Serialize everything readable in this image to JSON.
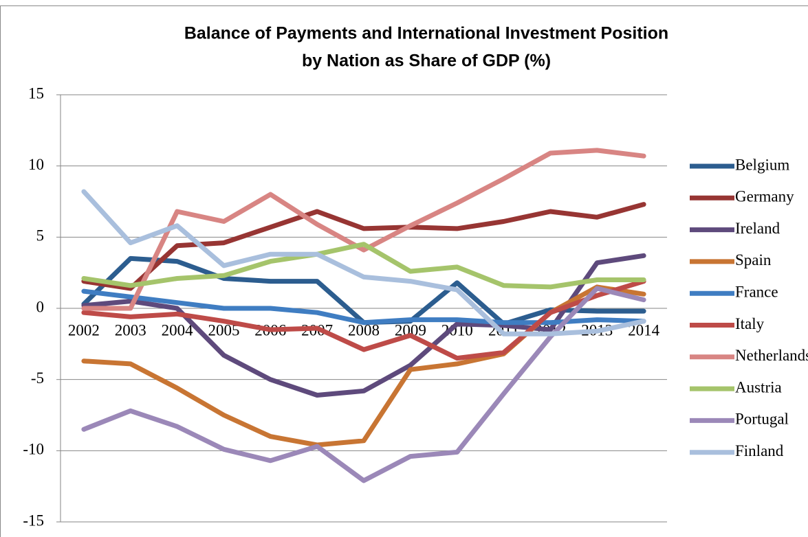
{
  "chart_data": {
    "type": "line",
    "title": [
      "Balance of Payments and International Investment Position",
      "by Nation as Share of GDP (%)"
    ],
    "categories": [
      "2002",
      "2003",
      "2004",
      "2005",
      "2006",
      "2007",
      "2008",
      "2009",
      "2010",
      "2011",
      "2012",
      "2013",
      "2014"
    ],
    "series": [
      {
        "name": "Belgium",
        "color": "#2C5D8F",
        "values": [
          0.3,
          3.5,
          3.3,
          2.1,
          1.9,
          1.9,
          -1.0,
          -0.9,
          1.8,
          -1.1,
          -0.1,
          -0.2,
          -0.2
        ]
      },
      {
        "name": "Germany",
        "color": "#973533",
        "values": [
          1.9,
          1.4,
          4.4,
          4.6,
          5.7,
          6.8,
          5.6,
          5.7,
          5.6,
          6.1,
          6.8,
          6.4,
          7.3
        ]
      },
      {
        "name": "Ireland",
        "color": "#5E4A7C",
        "values": [
          0.2,
          0.5,
          0.0,
          -3.3,
          -5.0,
          -6.1,
          -5.8,
          -4.0,
          -1.1,
          -1.2,
          -1.5,
          3.2,
          3.7
        ]
      },
      {
        "name": "Spain",
        "color": "#C87533",
        "values": [
          -3.7,
          -3.9,
          -5.6,
          -7.5,
          -9.0,
          -9.6,
          -9.3,
          -4.3,
          -3.9,
          -3.2,
          -0.3,
          1.5,
          1.0
        ]
      },
      {
        "name": "France",
        "color": "#3F7DC2",
        "values": [
          1.2,
          0.8,
          0.4,
          0.0,
          0.0,
          -0.3,
          -1.0,
          -0.8,
          -0.8,
          -1.0,
          -1.0,
          -0.8,
          -0.9
        ]
      },
      {
        "name": "Italy",
        "color": "#BE4B48",
        "values": [
          -0.3,
          -0.6,
          -0.4,
          -0.9,
          -1.5,
          -1.4,
          -2.9,
          -1.9,
          -3.5,
          -3.1,
          -0.3,
          0.9,
          1.9
        ]
      },
      {
        "name": "Netherlands",
        "color": "#D88583",
        "values": [
          0.0,
          0.0,
          6.8,
          6.1,
          8.0,
          5.9,
          4.1,
          5.8,
          7.4,
          9.1,
          10.9,
          11.1,
          10.7
        ]
      },
      {
        "name": "Austria",
        "color": "#A5C46B",
        "values": [
          2.1,
          1.6,
          2.1,
          2.3,
          3.3,
          3.8,
          4.5,
          2.6,
          2.9,
          1.6,
          1.5,
          2.0,
          2.0
        ]
      },
      {
        "name": "Portugal",
        "color": "#9B88B8",
        "values": [
          -8.5,
          -7.2,
          -8.3,
          -9.9,
          -10.7,
          -9.7,
          -12.1,
          -10.4,
          -10.1,
          -6.0,
          -2.0,
          1.4,
          0.6
        ]
      },
      {
        "name": "Finland",
        "color": "#A9BFDD",
        "values": [
          8.2,
          4.6,
          5.8,
          3.0,
          3.8,
          3.8,
          2.2,
          1.9,
          1.3,
          -1.8,
          -1.8,
          -1.6,
          -0.9
        ]
      }
    ],
    "ylim": [
      -15,
      15
    ],
    "yticks": [
      -15,
      -10,
      -5,
      0,
      5,
      10,
      15
    ],
    "grid": true,
    "legend": "right"
  }
}
